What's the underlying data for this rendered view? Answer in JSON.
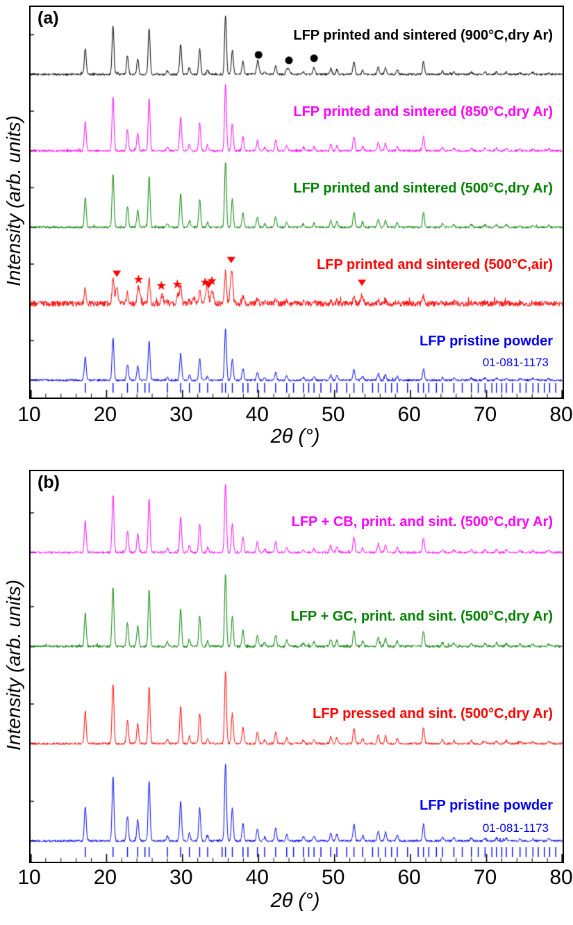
{
  "chart_data": [
    {
      "type": "line",
      "panel_label": "(a)",
      "title": "",
      "xlabel": "2θ (°)",
      "ylabel": "Intensity (arb. units)",
      "xlim": [
        10,
        80
      ],
      "x_ticks": [
        "10",
        "20",
        "30",
        "40",
        "50",
        "60",
        "70",
        "80"
      ],
      "grid": false,
      "legend_position": "inline-right",
      "lfp_peaks": [
        [
          17.2,
          0.45
        ],
        [
          20.85,
          0.82
        ],
        [
          22.75,
          0.32
        ],
        [
          24.1,
          0.27
        ],
        [
          25.6,
          0.78
        ],
        [
          28.0,
          0.06
        ],
        [
          29.75,
          0.52
        ],
        [
          30.9,
          0.1
        ],
        [
          32.25,
          0.42
        ],
        [
          33.3,
          0.07
        ],
        [
          35.65,
          1.0
        ],
        [
          36.55,
          0.42
        ],
        [
          37.95,
          0.22
        ],
        [
          39.85,
          0.16
        ],
        [
          40.8,
          0.05
        ],
        [
          42.25,
          0.16
        ],
        [
          43.7,
          0.08
        ],
        [
          45.9,
          0.05
        ],
        [
          47.3,
          0.06
        ],
        [
          49.5,
          0.1
        ],
        [
          50.3,
          0.08
        ],
        [
          52.55,
          0.22
        ],
        [
          53.7,
          0.07
        ],
        [
          55.75,
          0.13
        ],
        [
          56.7,
          0.11
        ],
        [
          58.25,
          0.07
        ],
        [
          61.7,
          0.22
        ],
        [
          64.2,
          0.05
        ],
        [
          65.7,
          0.04
        ],
        [
          68.0,
          0.04
        ],
        [
          69.8,
          0.04
        ],
        [
          71.3,
          0.04
        ],
        [
          72.6,
          0.04
        ],
        [
          74.4,
          0.03
        ],
        [
          76.1,
          0.03
        ],
        [
          78.2,
          0.03
        ]
      ],
      "series": [
        {
          "name": "LFP printed and sintered (900°C,dry Ar)",
          "color": "#000000",
          "noise_level": 1,
          "peak_scale": 1,
          "extra_peaks": [
            [
              40.0,
              0.1
            ],
            [
              44.0,
              0.08
            ],
            [
              47.3,
              0.06
            ]
          ],
          "markers": [
            {
              "symbol": "circle",
              "positions": [
                40.0,
                44.0,
                47.3
              ]
            }
          ]
        },
        {
          "name": "LFP printed and sintered (850°C,dry Ar)",
          "color": "#ff00ff",
          "noise_level": 1,
          "peak_scale": 1
        },
        {
          "name": "LFP printed and sintered (500°C,dry Ar)",
          "color": "#008000",
          "noise_level": 1,
          "peak_scale": 1
        },
        {
          "name": "LFP printed and sintered (500°C,air)",
          "color": "#ff0000",
          "noise_level": 2.6,
          "peak_scale": 0.55,
          "extra_peaks": [
            [
              21.35,
              0.3
            ],
            [
              24.3,
              0.2
            ],
            [
              27.3,
              0.14
            ],
            [
              29.4,
              0.16
            ],
            [
              31.5,
              0.1
            ],
            [
              33.2,
              0.3
            ],
            [
              33.9,
              0.24
            ],
            [
              36.4,
              0.42
            ],
            [
              53.6,
              0.12
            ]
          ],
          "markers": [
            {
              "symbol": "triangle-down",
              "positions": [
                21.35,
                33.45,
                36.4,
                53.6
              ]
            },
            {
              "symbol": "star",
              "positions": [
                24.3,
                27.3,
                29.4,
                33.05,
                33.95
              ]
            }
          ]
        },
        {
          "name": "LFP pristine powder",
          "color": "#0000ee",
          "noise_level": 1,
          "peak_scale": 0.92
        }
      ],
      "reference_pattern": {
        "label": "01-081-1173",
        "color": "#0000ee",
        "positions": [
          17.2,
          20.85,
          22.75,
          24.1,
          25.05,
          25.6,
          28.0,
          29.75,
          30.9,
          32.25,
          33.3,
          35.2,
          35.65,
          36.55,
          37.95,
          38.6,
          39.85,
          40.8,
          42.25,
          43.7,
          44.6,
          45.9,
          46.6,
          47.3,
          48.2,
          49.5,
          50.3,
          51.6,
          52.55,
          53.7,
          55.0,
          55.75,
          56.7,
          57.5,
          58.25,
          59.6,
          61.0,
          61.7,
          62.4,
          63.4,
          64.2,
          65.7,
          66.8,
          68.0,
          68.9,
          69.8,
          70.7,
          71.3,
          72.0,
          72.6,
          73.4,
          74.4,
          75.2,
          76.1,
          76.8,
          77.6,
          78.3,
          79.1
        ]
      }
    },
    {
      "type": "line",
      "panel_label": "(b)",
      "title": "",
      "xlabel": "2θ (°)",
      "ylabel": "Intensity (arb. units)",
      "xlim": [
        10,
        80
      ],
      "x_ticks": [
        "10",
        "20",
        "30",
        "40",
        "50",
        "60",
        "70",
        "80"
      ],
      "grid": false,
      "legend_position": "inline-right",
      "lfp_peaks": [
        [
          17.2,
          0.45
        ],
        [
          20.85,
          0.82
        ],
        [
          22.75,
          0.32
        ],
        [
          24.1,
          0.27
        ],
        [
          25.6,
          0.78
        ],
        [
          28.0,
          0.06
        ],
        [
          29.75,
          0.52
        ],
        [
          30.9,
          0.1
        ],
        [
          32.25,
          0.42
        ],
        [
          33.3,
          0.07
        ],
        [
          35.65,
          1.0
        ],
        [
          36.55,
          0.42
        ],
        [
          37.95,
          0.22
        ],
        [
          39.85,
          0.16
        ],
        [
          40.8,
          0.05
        ],
        [
          42.25,
          0.16
        ],
        [
          43.7,
          0.08
        ],
        [
          45.9,
          0.05
        ],
        [
          47.3,
          0.06
        ],
        [
          49.5,
          0.1
        ],
        [
          50.3,
          0.08
        ],
        [
          52.55,
          0.22
        ],
        [
          53.7,
          0.07
        ],
        [
          55.75,
          0.13
        ],
        [
          56.7,
          0.11
        ],
        [
          58.25,
          0.07
        ],
        [
          61.7,
          0.22
        ],
        [
          64.2,
          0.05
        ],
        [
          65.7,
          0.04
        ],
        [
          68.0,
          0.04
        ],
        [
          69.8,
          0.04
        ],
        [
          71.3,
          0.04
        ],
        [
          72.6,
          0.04
        ],
        [
          74.4,
          0.03
        ],
        [
          76.1,
          0.03
        ],
        [
          78.2,
          0.03
        ]
      ],
      "series": [
        {
          "name": "LFP + CB, print. and sint. (500°C,dry Ar)",
          "color": "#ff00ff",
          "noise_level": 1,
          "peak_scale": 1
        },
        {
          "name": "LFP + GC, print. and sint. (500°C,dry Ar)",
          "color": "#008000",
          "noise_level": 1.2,
          "peak_scale": 1
        },
        {
          "name": "LFP pressed and sint. (500°C,dry Ar)",
          "color": "#ff0000",
          "noise_level": 1,
          "peak_scale": 1
        },
        {
          "name": "LFP pristine powder",
          "color": "#0000ee",
          "noise_level": 1,
          "peak_scale": 1
        }
      ],
      "reference_pattern": {
        "label": "01-081-1173",
        "color": "#0000ee",
        "positions": [
          17.2,
          20.85,
          22.75,
          24.1,
          25.05,
          25.6,
          28.0,
          29.75,
          30.9,
          32.25,
          33.3,
          35.2,
          35.65,
          36.55,
          37.95,
          38.6,
          39.85,
          40.8,
          42.25,
          43.7,
          44.6,
          45.9,
          46.6,
          47.3,
          48.2,
          49.5,
          50.3,
          51.6,
          52.55,
          53.7,
          55.0,
          55.75,
          56.7,
          57.5,
          58.25,
          59.6,
          61.0,
          61.7,
          62.4,
          63.4,
          64.2,
          65.7,
          66.8,
          68.0,
          68.9,
          69.8,
          70.7,
          71.3,
          72.0,
          72.6,
          73.4,
          74.4,
          75.2,
          76.1,
          76.8,
          77.6,
          78.3,
          79.1
        ]
      }
    }
  ]
}
